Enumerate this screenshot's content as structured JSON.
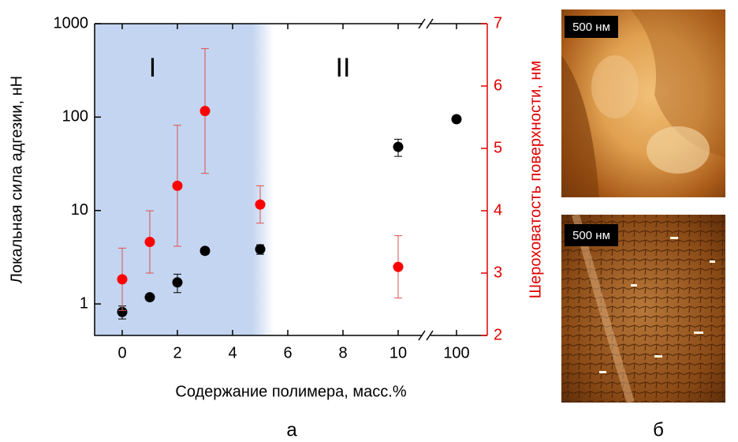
{
  "chart_data": {
    "type": "scatter",
    "x_label": "Содержание полимера, масс.%",
    "y_label": "Локальная сила адгезии, нН",
    "y2_label": "Шероховатость поверхности, нм",
    "xlim": [
      -1,
      105
    ],
    "xbreak": [
      11,
      95
    ],
    "xticks": [
      0,
      2,
      4,
      6,
      8,
      10,
      100
    ],
    "ylim": [
      0.46,
      1000
    ],
    "ylog": true,
    "yticks": [
      1,
      10,
      100,
      1000
    ],
    "y2lim": [
      2,
      7
    ],
    "y2ticks": [
      2,
      3,
      4,
      5,
      6,
      7
    ],
    "shade_xlim": [
      -1,
      5.5
    ],
    "shade_color": "#c3d5f0",
    "regions": [
      {
        "label": "I",
        "x": 1.1
      },
      {
        "label": "II",
        "x": 8
      }
    ],
    "series": [
      {
        "color": "#000000",
        "x": [
          0,
          1,
          2,
          3,
          5,
          10,
          100
        ],
        "values": [
          0.82,
          1.18,
          1.7,
          3.7,
          3.85,
          48,
          95
        ],
        "errors": [
          0.13,
          0.05,
          0.38,
          0.3,
          0.45,
          10,
          7
        ]
      },
      {
        "color": "#ff0000",
        "axis": "y2",
        "x": [
          0,
          1,
          2,
          3,
          5,
          10
        ],
        "values": [
          2.9,
          3.5,
          4.4,
          5.6,
          4.1,
          3.1
        ],
        "errors": [
          0.5,
          0.5,
          0.97,
          1.0,
          0.3,
          0.5
        ]
      }
    ]
  },
  "images": [
    {
      "scale_label": "500 нм"
    },
    {
      "scale_label": "500 нм"
    }
  ],
  "captions": [
    "а",
    "б"
  ]
}
